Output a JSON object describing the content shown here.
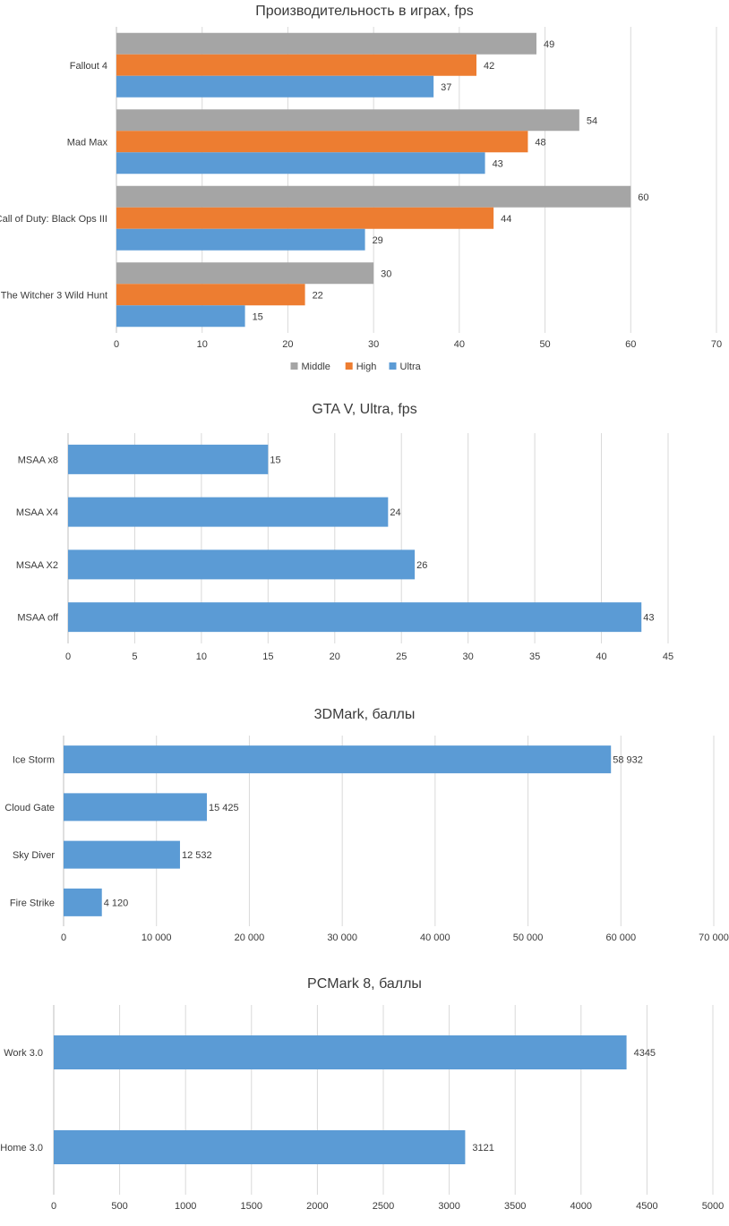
{
  "colors": {
    "middle": "#a5a5a5",
    "high": "#ed7d31",
    "ultra": "#5b9bd5"
  },
  "chart_data": [
    {
      "type": "bar",
      "title": "Производительность в играх, fps",
      "categories": [
        "Fallout 4",
        "Mad Max",
        "Call of Duty: Black Ops III",
        "The Witcher 3 Wild Hunt"
      ],
      "series": [
        {
          "name": "Middle",
          "values": [
            49,
            54,
            60,
            30
          ]
        },
        {
          "name": "High",
          "values": [
            42,
            48,
            44,
            22
          ]
        },
        {
          "name": "Ultra",
          "values": [
            37,
            43,
            29,
            15
          ]
        }
      ],
      "xlim": [
        0,
        70
      ],
      "ticks": [
        "0",
        "10",
        "20",
        "30",
        "40",
        "50",
        "60",
        "70"
      ],
      "legend": "bottom"
    },
    {
      "type": "bar",
      "title": "GTA V, Ultra, fps",
      "categories": [
        "MSAA x8",
        "MSAA X4",
        "MSAA X2",
        "MSAA off"
      ],
      "values": [
        15,
        24,
        26,
        43
      ],
      "value_labels": [
        "15",
        "24",
        "26",
        "43"
      ],
      "xlim": [
        0,
        45
      ],
      "ticks": [
        "0",
        "5",
        "10",
        "15",
        "20",
        "25",
        "30",
        "35",
        "40",
        "45"
      ]
    },
    {
      "type": "bar",
      "title": "3DMark, баллы",
      "categories": [
        "Ice Storm",
        "Cloud Gate",
        "Sky Diver",
        "Fire Strike"
      ],
      "values": [
        58932,
        15425,
        12532,
        4120
      ],
      "value_labels": [
        "58 932",
        "15 425",
        "12 532",
        "4 120"
      ],
      "xlim": [
        0,
        70000
      ],
      "ticks": [
        "0",
        "10 000",
        "20 000",
        "30 000",
        "40 000",
        "50 000",
        "60 000",
        "70 000"
      ]
    },
    {
      "type": "bar",
      "title": "PCMark 8, баллы",
      "categories": [
        "Work 3.0",
        "Home 3.0"
      ],
      "values": [
        4345,
        3121
      ],
      "value_labels": [
        "4345",
        "3121"
      ],
      "xlim": [
        0,
        5000
      ],
      "ticks": [
        "0",
        "500",
        "1000",
        "1500",
        "2000",
        "2500",
        "3000",
        "3500",
        "4000",
        "4500",
        "5000"
      ]
    }
  ]
}
